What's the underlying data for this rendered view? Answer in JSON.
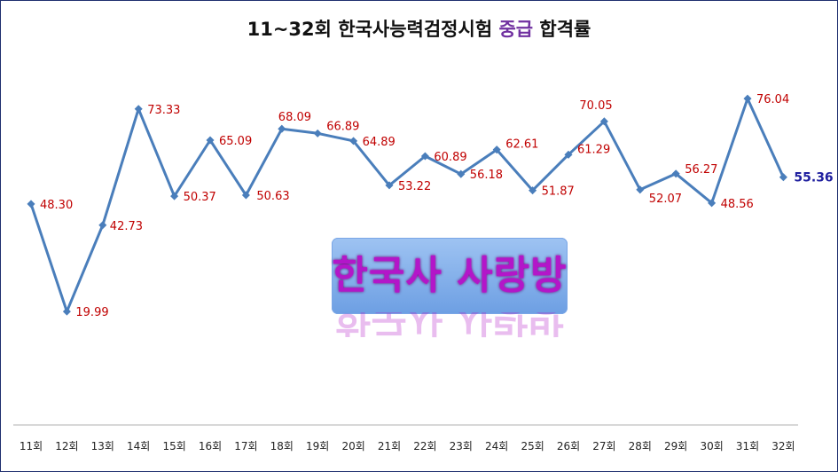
{
  "title": {
    "pre": "11~32회 한국사능력검정시험",
    "highlight": "중급",
    "post": "합격률"
  },
  "watermark": "한국사 사랑방",
  "colors": {
    "line": "#4a7ebb",
    "label": "#c00000",
    "last_label": "#1f1f9f",
    "title_highlight": "#7030a0"
  },
  "chart_data": {
    "type": "line",
    "title": "11~32회 한국사능력검정시험 중급 합격률",
    "xlabel": "",
    "ylabel": "",
    "ylim": [
      0,
      100
    ],
    "grid": false,
    "legend": "none",
    "categories": [
      "11회",
      "12회",
      "13회",
      "14회",
      "15회",
      "16회",
      "17회",
      "18회",
      "19회",
      "20회",
      "21회",
      "22회",
      "23회",
      "24회",
      "25회",
      "26회",
      "27회",
      "28회",
      "29회",
      "30회",
      "31회",
      "32회"
    ],
    "values": [
      48.3,
      19.99,
      42.73,
      73.33,
      50.37,
      65.09,
      50.63,
      68.09,
      66.89,
      64.89,
      53.22,
      60.89,
      56.18,
      62.61,
      51.87,
      61.29,
      70.05,
      52.07,
      56.27,
      48.56,
      76.04,
      55.36
    ],
    "labels": [
      "48.30",
      "19.99",
      "42.73",
      "73.33",
      "50.37",
      "65.09",
      "50.63",
      "68.09",
      "66.89",
      "64.89",
      "53.22",
      "60.89",
      "56.18",
      "62.61",
      "51.87",
      "61.29",
      "70.05",
      "52.07",
      "56.27",
      "48.56",
      "76.04",
      "55.36"
    ]
  }
}
